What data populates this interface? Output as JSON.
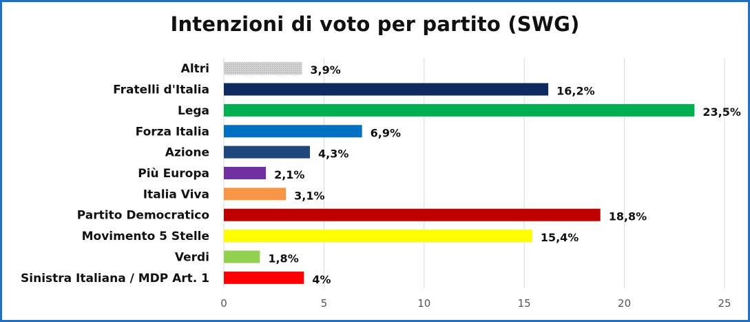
{
  "chart_data": {
    "type": "bar",
    "orientation": "horizontal",
    "title": "Intenzioni di voto per partito (SWG)",
    "categories": [
      "Altri",
      "Fratelli d'Italia",
      "Lega",
      "Forza Italia",
      "Azione",
      "Più Europa",
      "Italia Viva",
      "Partito Democratico",
      "Movimento 5 Stelle",
      "Verdi",
      "Sinistra Italiana / MDP Art. 1"
    ],
    "values": [
      3.9,
      16.2,
      23.5,
      6.9,
      4.3,
      2.1,
      3.1,
      18.8,
      15.4,
      1.8,
      4
    ],
    "value_labels": [
      "3,9%",
      "16,2%",
      "23,5%",
      "6,9%",
      "4,3%",
      "2,1%",
      "3,1%",
      "18,8%",
      "15,4%",
      "1,8%",
      "4%"
    ],
    "colors": [
      "#c9c9c9",
      "#0e2a5e",
      "#00b050",
      "#0070c0",
      "#1f477c",
      "#7030a0",
      "#f79646",
      "#c00000",
      "#ffff00",
      "#92d050",
      "#ff0000"
    ],
    "patterned": [
      true,
      false,
      false,
      false,
      false,
      false,
      false,
      false,
      false,
      false,
      false
    ],
    "x_ticks": [
      0,
      5,
      10,
      15,
      20,
      25
    ],
    "xlim": [
      0,
      25
    ],
    "grid": true,
    "xlabel": "",
    "ylabel": ""
  }
}
